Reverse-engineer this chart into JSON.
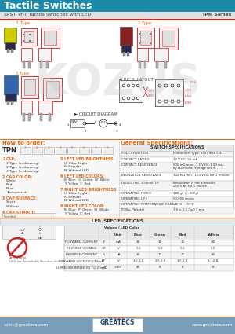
{
  "title": "Tactile Switches",
  "subtitle": "SPST THT Tactile Switches with LED",
  "series": "TPN Series",
  "header_bg": "#1a8aa8",
  "header_text": "#ffffff",
  "subheader_bg": "#e0e0e0",
  "subheader_text": "#333333",
  "orange": "#e8650a",
  "footer_bg": "#7a9db8",
  "footer_text": "#ffffff",
  "body_bg": "#ffffff",
  "red_line": "#cc0000",
  "tbl_border": "#bbbbbb",
  "tbl_header_bg": "#e8e8e8",
  "tbl_row_alt": "#f4f4f4",
  "switch_specs": [
    [
      "POLE / POSITION",
      "Momentary Type, SPST with LED"
    ],
    [
      "CONTACT RATING",
      "12 V DC, 50 mA"
    ],
    [
      "CONTACT RESISTANCE",
      "500 mΩ max., 1.5 V DC, 100 mA,\nby Method of Voltage DROP"
    ],
    [
      "INSULATION RESISTANCE",
      "100 MΩ min., 100 V DC for 1 minute"
    ],
    [
      "DIELECTRIC STRENGTH",
      "Breakdown is not allowable,\n250 V AC for 1 Minute"
    ],
    [
      "OPERATING FORCE",
      "350 gf +/- 100gf"
    ],
    [
      "OPERATING LIFE",
      "50,000 cycles"
    ],
    [
      "OPERATING TEMPERATURE RANGE",
      "-20°C ~ 70°C"
    ],
    [
      "PCBa, Pb(tele)",
      "1.6 ± 0.1 / ±0.1 mm"
    ]
  ],
  "led_rows": [
    [
      "FORWARD CURRENT",
      "IF",
      "mA",
      "30",
      "30",
      "10",
      "20"
    ],
    [
      "REVERSE VOLTAGE",
      "VR",
      "V",
      "5.0",
      "5.0",
      "5.0",
      "5.0"
    ],
    [
      "REVERSE CURRENT",
      "IR",
      "μA",
      "10",
      "10",
      "10",
      "10"
    ],
    [
      "FORWARD VOLTAGE@30mA",
      "VF",
      "V",
      "3.0-3.8",
      "1.7-2.8",
      "1.7-2.8",
      "1.7-2.8"
    ],
    [
      "LUMINOUS INTENSITY F@20mA",
      "IV",
      "mcd",
      "45",
      "8",
      "8",
      "8"
    ]
  ],
  "footer_email": "sales@greatecs.com",
  "footer_web": "www.greatecs.com"
}
